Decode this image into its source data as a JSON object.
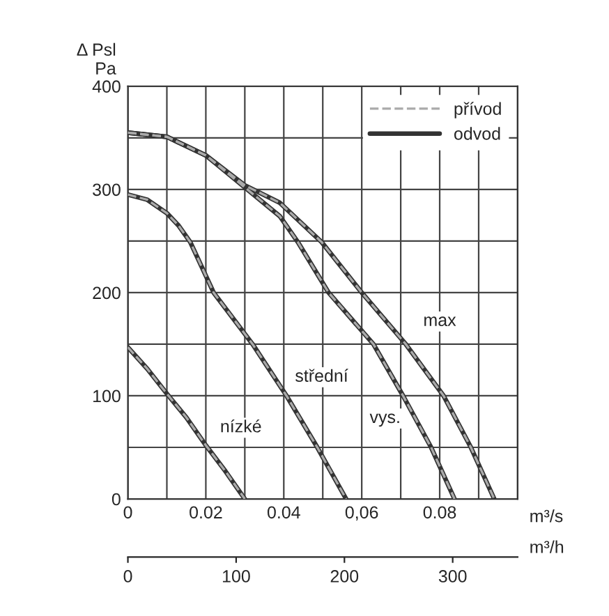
{
  "chart_data": {
    "type": "line",
    "xlabel": "m³/s",
    "ylabel": "Δ Psl\nPa",
    "x2label": "m³/h",
    "xlim": [
      0,
      0.1
    ],
    "ylim": [
      0,
      400
    ],
    "xticks": [
      0,
      {
        "value": 0.01,
        "label": null
      },
      {
        "value": 0.02,
        "label": "0.02"
      },
      {
        "value": 0.03,
        "label": null
      },
      {
        "value": 0.04,
        "label": "0.04"
      },
      {
        "value": 0.05,
        "label": null
      },
      {
        "value": 0.06,
        "label": "0,06"
      },
      {
        "value": 0.07,
        "label": null
      },
      {
        "value": 0.08,
        "label": "0.08"
      },
      {
        "value": 0.09,
        "label": null
      },
      {
        "value": 0.1,
        "label": null
      }
    ],
    "yticks": [
      0,
      {
        "value": 50,
        "label": null
      },
      100,
      {
        "value": 150,
        "label": null
      },
      200,
      {
        "value": 250,
        "label": null
      },
      300,
      {
        "value": 350,
        "label": null
      },
      400
    ],
    "x2lim": [
      0,
      360
    ],
    "x2ticks": [
      0,
      100,
      200,
      300
    ],
    "grid": true,
    "legend": "top right",
    "marker": "none",
    "series": [
      {
        "name": "přívod",
        "color": "#aaaaaa",
        "line_style": "dashed",
        "x": [
          0,
          0.005,
          0.01,
          0.015,
          0.02,
          0.025,
          0.03
        ],
        "values": [
          147,
          126,
          102,
          79,
          52,
          27,
          0
        ]
      },
      {
        "name": "odvod",
        "color": "#333333",
        "line_style": "solid",
        "x": [
          0,
          0.005,
          0.01,
          0.015,
          0.02,
          0.025,
          0.03
        ],
        "values": [
          147,
          126,
          102,
          79,
          52,
          27,
          0
        ]
      },
      {
        "color": "#333333",
        "line_style": "solid",
        "x": [
          0,
          0.005,
          0.01,
          0.013,
          0.016,
          0.022,
          0.032,
          0.0407,
          0.0486,
          0.056
        ],
        "values": [
          295,
          290,
          277,
          265,
          249,
          200,
          150,
          100,
          50,
          0
        ]
      },
      {
        "color": "#aaaaaa",
        "line_style": "dashed",
        "x": [
          0,
          0.005,
          0.01,
          0.013,
          0.016,
          0.022,
          0.032,
          0.0407,
          0.0486,
          0.056
        ],
        "values": [
          295,
          290,
          277,
          265,
          249,
          200,
          150,
          100,
          50,
          0
        ]
      },
      {
        "color": "#333333",
        "line_style": "solid",
        "x": [
          0,
          0.01,
          0.02,
          0.03,
          0.039,
          0.0436,
          0.0515,
          0.063,
          0.0706,
          0.0778,
          0.0838
        ],
        "values": [
          355,
          351,
          333,
          302,
          274,
          249,
          200,
          150,
          100,
          50,
          0
        ]
      },
      {
        "color": "#aaaaaa",
        "line_style": "dashed",
        "x": [
          0,
          0.01,
          0.02,
          0.03,
          0.039,
          0.0436,
          0.0515,
          0.063,
          0.0706,
          0.0778,
          0.0838
        ],
        "values": [
          355,
          351,
          333,
          302,
          274,
          249,
          200,
          150,
          100,
          50,
          0
        ]
      },
      {
        "color": "#333333",
        "line_style": "solid",
        "x": [
          0,
          0.01,
          0.02,
          0.03,
          0.039,
          0.0497,
          0.06,
          0.0713,
          0.081,
          0.088,
          0.094
        ],
        "values": [
          355,
          351,
          333,
          304,
          287,
          249,
          200,
          150,
          100,
          50,
          0
        ]
      },
      {
        "color": "#aaaaaa",
        "line_style": "dashed",
        "x": [
          0,
          0.01,
          0.02,
          0.03,
          0.039,
          0.0497,
          0.06,
          0.0713,
          0.081,
          0.088,
          0.094
        ],
        "values": [
          355,
          351,
          333,
          304,
          287,
          249,
          200,
          150,
          100,
          50,
          0
        ]
      }
    ],
    "annotations": [
      {
        "text": "nízké",
        "x": 0.029,
        "y": 69
      },
      {
        "text": "střední",
        "x": 0.0497,
        "y": 118
      },
      {
        "text": "vys.",
        "x": 0.066,
        "y": 78
      },
      {
        "text": "max",
        "x": 0.08,
        "y": 172
      }
    ]
  }
}
